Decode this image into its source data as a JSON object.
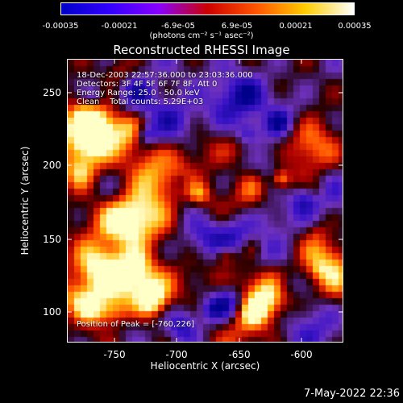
{
  "colorbar": {
    "tick_labels": [
      "-0.00035",
      "-0.00021",
      "-6.9e-05",
      "6.9e-05",
      "0.00021",
      "0.00035"
    ],
    "units": "(photons cm⁻² s⁻¹ asec⁻²)",
    "colors": [
      "#0000c8",
      "#3300ff",
      "#8800ff",
      "#cc0000",
      "#ff5500",
      "#ffcc00",
      "#ffffff"
    ]
  },
  "title": "Reconstructed RHESSI Image",
  "info": {
    "time": "18-Dec-2003 22:57:36.000 to 23:03:36.000",
    "detectors": "Detectors: 3F 4F 5F 6F 7F 8F, Att 0",
    "energy": "Energy Range: 25.0 - 50.0 keV",
    "clean": "Clean    Total counts: 5.29E+03",
    "peak": "Position of Peak = [-760,226]"
  },
  "axes": {
    "x_label": "Heliocentric X (arcsec)",
    "y_label": "Heliocentric Y (arcsec)",
    "x_ticks": [
      "-750",
      "-700",
      "-650",
      "-600"
    ],
    "y_ticks": [
      "250",
      "200",
      "150",
      "100"
    ]
  },
  "footer_date": "7-May-2022 22:36"
}
